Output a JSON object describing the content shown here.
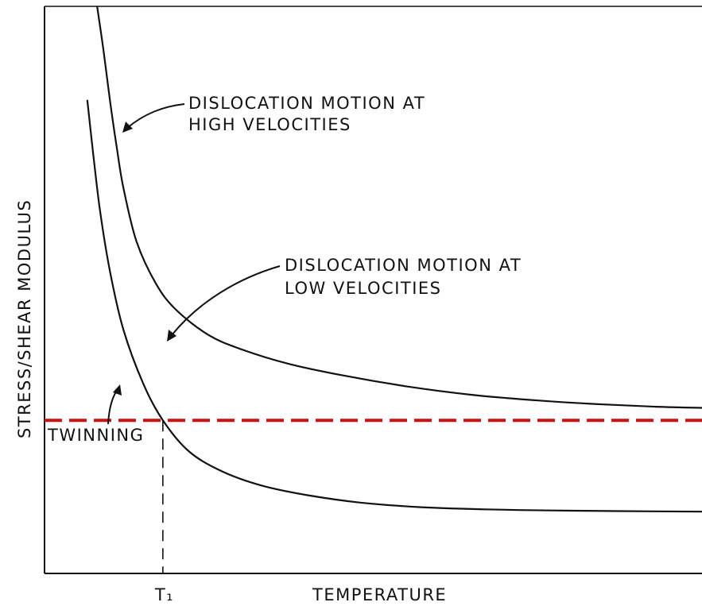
{
  "chart_data": {
    "type": "line",
    "xlabel": "TEMPERATURE",
    "ylabel": "STRESS/SHEAR MODULUS",
    "x_tick_label": "T₁",
    "x_marker_value": 0.18,
    "xlim": [
      0,
      1
    ],
    "ylim": [
      0,
      1
    ],
    "grid": false,
    "axis_ticks_numeric": false,
    "series": [
      {
        "name": "DISLOCATION MOTION AT HIGH VELOCITIES",
        "style": "solid",
        "color": "#111111",
        "x": [
          0.08,
          0.09,
          0.1,
          0.11,
          0.12,
          0.14,
          0.17,
          0.2,
          0.25,
          0.3,
          0.37,
          0.45,
          0.55,
          0.65,
          0.75,
          0.85,
          0.93,
          1.0
        ],
        "y": [
          1.0,
          0.92,
          0.83,
          0.75,
          0.68,
          0.585,
          0.51,
          0.465,
          0.42,
          0.395,
          0.37,
          0.35,
          0.33,
          0.315,
          0.305,
          0.298,
          0.294,
          0.292
        ]
      },
      {
        "name": "DISLOCATION MOTION AT LOW VELOCITIES",
        "style": "solid",
        "color": "#111111",
        "x": [
          0.065,
          0.075,
          0.085,
          0.1,
          0.12,
          0.15,
          0.18,
          0.22,
          0.27,
          0.33,
          0.4,
          0.48,
          0.57,
          0.67,
          0.77,
          0.87,
          1.0
        ],
        "y": [
          0.835,
          0.73,
          0.635,
          0.53,
          0.43,
          0.335,
          0.27,
          0.215,
          0.18,
          0.155,
          0.138,
          0.125,
          0.117,
          0.113,
          0.111,
          0.11,
          0.109
        ]
      },
      {
        "name": "TWINNING",
        "style": "dashed",
        "color": "#cc1111",
        "x": [
          0.0,
          1.0
        ],
        "y": [
          0.27,
          0.27
        ]
      }
    ],
    "annotations": [
      {
        "text_lines": [
          "DISLOCATION MOTION AT",
          "HIGH VELOCITIES"
        ],
        "target_series": 0
      },
      {
        "text_lines": [
          "DISLOCATION MOTION AT",
          "LOW VELOCITIES"
        ],
        "target_series": 1
      },
      {
        "text_lines": [
          "TWINNING"
        ],
        "target_series": 2
      }
    ]
  }
}
